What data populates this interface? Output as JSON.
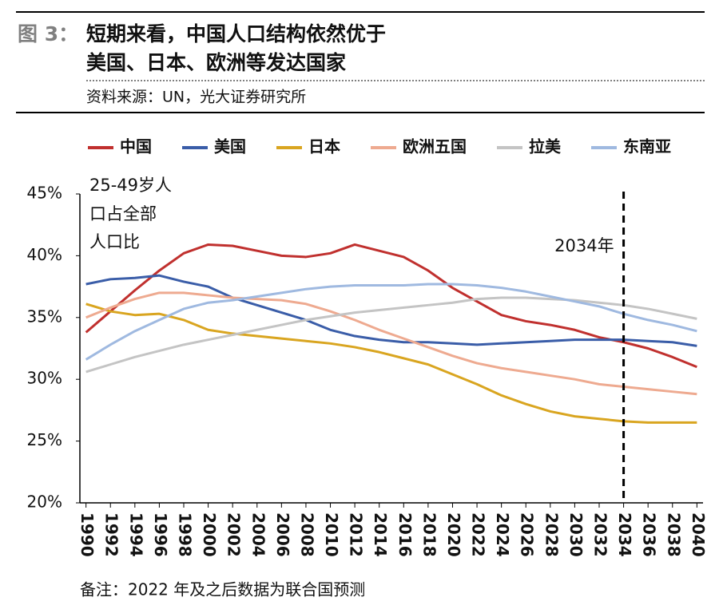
{
  "chart_data": {
    "type": "line",
    "figure_label": "图 3：",
    "title_lines": [
      "短期来看，中国人口结构依然优于",
      "美国、日本、欧洲等发达国家"
    ],
    "source": "资料来源：UN，光大证券研究所",
    "note": "备注：2022 年及之后数据为联合国预测",
    "y_annotation_lines": [
      "25-49岁人",
      "口占全部",
      "人口比"
    ],
    "marker": {
      "x": 2034,
      "label": "2034年"
    },
    "x": [
      1990,
      1992,
      1994,
      1996,
      1998,
      2000,
      2002,
      2004,
      2006,
      2008,
      2010,
      2012,
      2014,
      2016,
      2018,
      2020,
      2022,
      2024,
      2026,
      2028,
      2030,
      2032,
      2034,
      2036,
      2038,
      2040
    ],
    "xlim": [
      1989.5,
      2040.5
    ],
    "xticks": [
      1990,
      1992,
      1994,
      1996,
      1998,
      2000,
      2002,
      2004,
      2006,
      2008,
      2010,
      2012,
      2014,
      2016,
      2018,
      2020,
      2022,
      2024,
      2026,
      2028,
      2030,
      2032,
      2034,
      2036,
      2038,
      2040
    ],
    "ylim": [
      20,
      45
    ],
    "yticks": [
      {
        "value": 20,
        "label": "20%"
      },
      {
        "value": 25,
        "label": "25%"
      },
      {
        "value": 30,
        "label": "30%"
      },
      {
        "value": 35,
        "label": "35%"
      },
      {
        "value": 40,
        "label": "40%"
      },
      {
        "value": 45,
        "label": "45%"
      }
    ],
    "grid": false,
    "legend": "top",
    "series": [
      {
        "name": "中国",
        "color": "#c0302e",
        "values": [
          33.8,
          35.5,
          37.2,
          38.8,
          40.2,
          40.9,
          40.8,
          40.4,
          40.0,
          39.9,
          40.2,
          40.9,
          40.4,
          39.9,
          38.8,
          37.4,
          36.3,
          35.2,
          34.7,
          34.4,
          34.0,
          33.4,
          33.0,
          32.5,
          31.8,
          31.0
        ]
      },
      {
        "name": "美国",
        "color": "#3a5da8",
        "values": [
          37.7,
          38.1,
          38.2,
          38.4,
          37.9,
          37.5,
          36.6,
          36.0,
          35.4,
          34.8,
          34.0,
          33.5,
          33.2,
          33.0,
          33.0,
          32.9,
          32.8,
          32.9,
          33.0,
          33.1,
          33.2,
          33.2,
          33.2,
          33.1,
          33.0,
          32.7
        ]
      },
      {
        "name": "日本",
        "color": "#d9a520",
        "values": [
          36.1,
          35.5,
          35.2,
          35.3,
          34.8,
          34.0,
          33.7,
          33.5,
          33.3,
          33.1,
          32.9,
          32.6,
          32.2,
          31.7,
          31.2,
          30.4,
          29.6,
          28.7,
          28.0,
          27.4,
          27.0,
          26.8,
          26.6,
          26.5,
          26.5,
          26.5
        ]
      },
      {
        "name": "欧洲五国",
        "color": "#eeaa90",
        "values": [
          35.0,
          35.8,
          36.5,
          37.0,
          37.0,
          36.8,
          36.6,
          36.5,
          36.4,
          36.1,
          35.5,
          34.8,
          34.0,
          33.3,
          32.6,
          31.9,
          31.3,
          30.9,
          30.6,
          30.3,
          30.0,
          29.6,
          29.4,
          29.2,
          29.0,
          28.8
        ]
      },
      {
        "name": "拉美",
        "color": "#c4c4c4",
        "values": [
          30.6,
          31.2,
          31.8,
          32.3,
          32.8,
          33.2,
          33.6,
          34.0,
          34.4,
          34.8,
          35.1,
          35.4,
          35.6,
          35.8,
          36.0,
          36.2,
          36.5,
          36.6,
          36.6,
          36.5,
          36.4,
          36.2,
          36.0,
          35.7,
          35.3,
          34.9
        ]
      },
      {
        "name": "东南亚",
        "color": "#9fb9e0",
        "values": [
          31.6,
          32.8,
          33.9,
          34.8,
          35.7,
          36.2,
          36.4,
          36.7,
          37.0,
          37.3,
          37.5,
          37.6,
          37.6,
          37.6,
          37.7,
          37.7,
          37.6,
          37.4,
          37.1,
          36.7,
          36.3,
          35.9,
          35.3,
          34.8,
          34.4,
          33.9
        ]
      }
    ]
  }
}
